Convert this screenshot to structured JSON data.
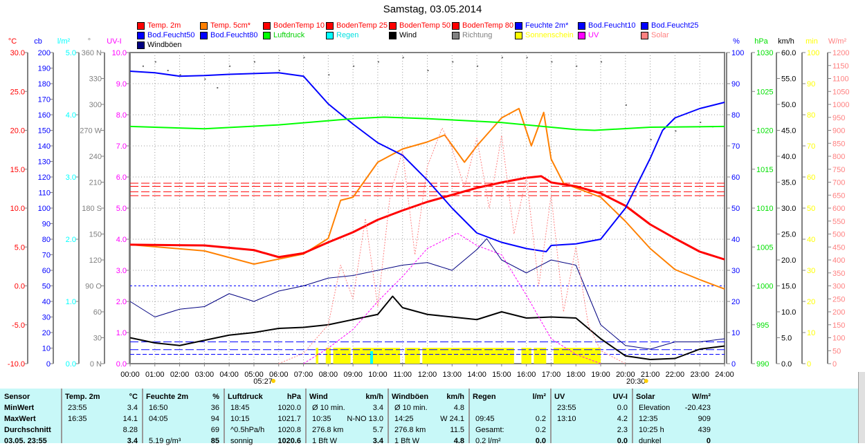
{
  "title": "Samstag, 03.05.2014",
  "legend": [
    {
      "label": "Temp. 2m",
      "color": "#ff0000",
      "text": "#ff0000"
    },
    {
      "label": "Temp. 5cm*",
      "color": "#ff8000",
      "text": "#ff0000"
    },
    {
      "label": "BodenTemp 10",
      "color": "#ff0000",
      "text": "#ff0000"
    },
    {
      "label": "BodenTemp 25",
      "color": "#ff0000",
      "text": "#ff0000"
    },
    {
      "label": "BodenTemp 50",
      "color": "#ff0000",
      "text": "#ff0000"
    },
    {
      "label": "BodenTemp 80",
      "color": "#ff0000",
      "text": "#ff0000"
    },
    {
      "label": "Feuchte 2m*",
      "color": "#0000ff",
      "text": "#0000ff"
    },
    {
      "label": "Bod.Feucht10",
      "color": "#0000ff",
      "text": "#0000ff"
    },
    {
      "label": "Bod.Feucht25",
      "color": "#0000ff",
      "text": "#0000ff"
    },
    {
      "label": "Bod.Feucht50",
      "color": "#0000ff",
      "text": "#0000ff"
    },
    {
      "label": "Bod.Feucht80",
      "color": "#0000ff",
      "text": "#0000ff"
    },
    {
      "label": "Luftdruck",
      "color": "#00ff00",
      "text": "#00d000"
    },
    {
      "label": "Regen",
      "color": "#00ffff",
      "text": "#00e0e0"
    },
    {
      "label": "Wind",
      "color": "#000000",
      "text": "#000000"
    },
    {
      "label": "Richtung",
      "color": "#808080",
      "text": "#808080"
    },
    {
      "label": "Sonnenschein",
      "color": "#ffff00",
      "text": "#ffff00"
    },
    {
      "label": "UV",
      "color": "#ff00ff",
      "text": "#ff00ff"
    },
    {
      "label": "Solar",
      "color": "#ff8080",
      "text": "#ff8080"
    },
    {
      "label": "Windböen",
      "color": "#000080",
      "text": "#000000"
    }
  ],
  "chart_data": {
    "type": "line",
    "title": "Samstag, 03.05.2014",
    "x_ticks": [
      "00:00",
      "01:00",
      "02:00",
      "03:00",
      "04:00",
      "05:00",
      "06:00",
      "07:00",
      "08:00",
      "09:00",
      "10:00",
      "11:00",
      "12:00",
      "13:00",
      "14:00",
      "15:00",
      "16:00",
      "17:00",
      "18:00",
      "19:00",
      "20:00",
      "21:00",
      "22:00",
      "23:00",
      "24:00"
    ],
    "sunrise": "05:27",
    "sunset": "20:30",
    "axes_left": [
      {
        "unit": "°C",
        "color": "#ff0000",
        "min": -10,
        "max": 30,
        "step": 5,
        "dec": 1
      },
      {
        "unit": "cb",
        "color": "#0000ff",
        "min": 0,
        "max": 200,
        "step": 10,
        "dec": 0
      },
      {
        "unit": "l/m²",
        "color": "#00ffff",
        "min": 0,
        "max": 5,
        "step": 1,
        "dec": 1
      },
      {
        "unit": "°",
        "color": "#808080",
        "min": 0,
        "max": 360,
        "step": 30,
        "dec": 0,
        "names": {
          "0": "0 N",
          "90": "90 O",
          "180": "180 S",
          "270": "270 W",
          "360": "360 N"
        }
      },
      {
        "unit": "UV-I",
        "color": "#ff00ff",
        "min": 0,
        "max": 10,
        "step": 1,
        "dec": 1
      }
    ],
    "axes_right": [
      {
        "unit": "%",
        "color": "#0000ff",
        "min": 0,
        "max": 100,
        "step": 10,
        "dec": 0
      },
      {
        "unit": "hPa",
        "color": "#00e000",
        "min": 990,
        "max": 1030,
        "step": 5,
        "dec": 0
      },
      {
        "unit": "km/h",
        "color": "#000000",
        "min": 0,
        "max": 60,
        "step": 5,
        "dec": 1
      },
      {
        "unit": "min",
        "color": "#ffff00",
        "min": 0,
        "max": 100,
        "step": 10,
        "dec": 0
      },
      {
        "unit": "W/m²",
        "color": "#ff8080",
        "min": 0,
        "max": 1200,
        "step": 50,
        "dec": 0
      }
    ],
    "series": [
      {
        "name": "Temp. 5cm*",
        "axis": "°C",
        "color": "#ff8000",
        "width": 2,
        "x": [
          0,
          3,
          5,
          7,
          8,
          8.5,
          9,
          10,
          11,
          12,
          12.7,
          13.5,
          14,
          15,
          15.7,
          16.2,
          16.7,
          17,
          17.5,
          18,
          19,
          20,
          21,
          22,
          23,
          24
        ],
        "y": [
          5.3,
          4.5,
          2.8,
          4.1,
          6.1,
          11,
          11.4,
          15.9,
          17.6,
          18.5,
          19.4,
          15.9,
          18,
          21.6,
          22.8,
          18,
          22.3,
          16.3,
          13.2,
          12.6,
          11.4,
          8.3,
          4.8,
          2.1,
          0.8,
          -0.4
        ]
      },
      {
        "name": "Temp. 2m",
        "axis": "°C",
        "color": "#ff0000",
        "width": 3,
        "x": [
          0,
          3,
          5,
          6,
          7,
          8,
          9,
          10,
          11,
          12,
          13,
          14,
          15,
          16,
          16.6,
          17,
          18,
          19,
          20,
          21,
          22,
          23,
          24
        ],
        "y": [
          5.3,
          5.2,
          4.6,
          3.7,
          4.2,
          5.6,
          6.9,
          8.5,
          9.7,
          10.8,
          11.7,
          12.6,
          13.3,
          13.9,
          14.1,
          13.3,
          12.8,
          11.9,
          10.3,
          7.9,
          6.1,
          4.4,
          3.4
        ]
      },
      {
        "name": "Feuchte 2m*",
        "axis": "%",
        "color": "#0000ff",
        "width": 2,
        "x": [
          0,
          1,
          2,
          3,
          4,
          6,
          7,
          8,
          9,
          10,
          11,
          12,
          13,
          14,
          15,
          16,
          16.8,
          17,
          18,
          19,
          20,
          21,
          21.5,
          22,
          23,
          24
        ],
        "y": [
          94,
          93.5,
          92.4,
          92.6,
          93,
          93.5,
          92.4,
          83.5,
          77,
          71,
          67,
          59,
          50,
          42,
          39,
          37,
          36,
          38,
          38.5,
          40,
          50,
          66,
          75,
          79,
          82,
          84
        ]
      },
      {
        "name": "Luftdruck",
        "axis": "hPa",
        "color": "#00ff00",
        "width": 2,
        "x": [
          0,
          3,
          6,
          9,
          10.25,
          12,
          15,
          18,
          18.75,
          21,
          24
        ],
        "y": [
          1020.5,
          1020.2,
          1020.7,
          1021.5,
          1021.7,
          1021.5,
          1021.0,
          1020.1,
          1020.0,
          1020.4,
          1020.5
        ]
      },
      {
        "name": "Windböen",
        "axis": "km/h",
        "color": "#000080",
        "width": 1,
        "x": [
          0,
          1,
          2,
          3,
          4,
          5,
          6,
          7,
          8,
          9,
          10,
          11,
          12,
          13,
          14,
          14.4,
          15,
          16,
          17,
          18,
          19,
          20,
          21,
          22,
          23,
          24
        ],
        "y": [
          12,
          9,
          10.5,
          11,
          13.5,
          12,
          14,
          15,
          16.5,
          17,
          18,
          19,
          19.5,
          18,
          22,
          24.1,
          20,
          17.5,
          20,
          19,
          7.5,
          3.5,
          2.8,
          4.2,
          4.2,
          4.8
        ]
      },
      {
        "name": "Wind",
        "axis": "km/h",
        "color": "#000000",
        "width": 2,
        "x": [
          0,
          1,
          2,
          3,
          4,
          5,
          6,
          7,
          8,
          9,
          10,
          10.6,
          11,
          12,
          13,
          14,
          15,
          16,
          17,
          18,
          19,
          20,
          21,
          22,
          23,
          24
        ],
        "y": [
          5,
          4,
          3.5,
          4.5,
          5.5,
          6,
          6.8,
          7,
          7.5,
          8.5,
          9.5,
          13,
          10.8,
          9.5,
          9,
          8.5,
          10,
          8.8,
          9,
          8.8,
          4.8,
          1.5,
          0.8,
          1.0,
          2.8,
          3.4
        ]
      },
      {
        "name": "UV",
        "axis": "UV-I",
        "color": "#ff00ff",
        "width": 1,
        "dash": "3,2",
        "x": [
          7,
          8,
          9,
          10,
          11,
          12,
          13,
          13.2,
          14,
          15,
          16,
          17,
          18,
          19
        ],
        "y": [
          0,
          0.5,
          1.1,
          2.0,
          2.8,
          3.7,
          4.1,
          4.2,
          3.8,
          3.5,
          2.2,
          0.8,
          0.3,
          0
        ]
      },
      {
        "name": "Solar",
        "axis": "W/m²",
        "color": "#ff8080",
        "width": 1,
        "dash": "2,2",
        "x": [
          6,
          7,
          8,
          8.5,
          9,
          9.5,
          10,
          10.5,
          11,
          11.5,
          12,
          12.6,
          13,
          13.5,
          14,
          14.5,
          15,
          15.5,
          16,
          16.5,
          17,
          17.5,
          18,
          18.5,
          19,
          20
        ],
        "y": [
          0,
          40,
          150,
          380,
          250,
          560,
          220,
          650,
          820,
          420,
          760,
          909,
          830,
          680,
          870,
          600,
          880,
          500,
          720,
          300,
          650,
          200,
          450,
          150,
          50,
          0
        ]
      }
    ],
    "constant_lines": [
      {
        "name": "BodenTemp 10",
        "axis": "°C",
        "color": "#ff0000",
        "value": 13.2,
        "dash": "12,4"
      },
      {
        "name": "BodenTemp 25",
        "axis": "°C",
        "color": "#ff0000",
        "value": 12.8,
        "dash": "12,4"
      },
      {
        "name": "BodenTemp 50",
        "axis": "°C",
        "color": "#ff0000",
        "value": 12.1,
        "dash": "12,4"
      },
      {
        "name": "BodenTemp 80",
        "axis": "°C",
        "color": "#ff0000",
        "value": 11.6,
        "dash": "12,4"
      },
      {
        "name": "Bod.Feucht10",
        "axis": "%",
        "color": "#0000ff",
        "value": 25,
        "dash": "3,3"
      },
      {
        "name": "Bod.Feucht25",
        "axis": "%",
        "color": "#0000ff",
        "value": 7,
        "dash": "12,4"
      },
      {
        "name": "Bod.Feucht50",
        "axis": "%",
        "color": "#0000ff",
        "value": 4.5,
        "dash": "12,4"
      },
      {
        "name": "Bod.Feucht80",
        "axis": "%",
        "color": "#0000ff",
        "value": 3,
        "dash": "6,3"
      }
    ],
    "sunshine_intervals": [
      [
        7.5,
        7.6
      ],
      [
        7.9,
        8.1
      ],
      [
        8.2,
        8.9
      ],
      [
        9.0,
        10.9
      ],
      [
        11.1,
        11.7
      ],
      [
        11.8,
        15.5
      ],
      [
        15.8,
        16.2
      ],
      [
        16.3,
        16.8
      ],
      [
        17.1,
        19.0
      ]
    ],
    "rain": {
      "time": 9.75,
      "value": 0.2
    },
    "direction": {
      "x": [
        0.5,
        1,
        1.5,
        2,
        3,
        3.5,
        4,
        5,
        6,
        7,
        8,
        9,
        10,
        11,
        12,
        13,
        14,
        15,
        16,
        17,
        18,
        19,
        20,
        21,
        22,
        23,
        23.5
      ],
      "y": [
        345,
        350,
        340,
        335,
        330,
        320,
        345,
        350,
        340,
        355,
        335,
        345,
        350,
        355,
        340,
        350,
        345,
        355,
        355,
        350,
        345,
        350,
        300,
        260,
        270,
        280,
        275
      ]
    }
  },
  "table": {
    "groups": [
      {
        "header": [
          "Sensor",
          ""
        ],
        "rows": [
          [
            "MinWert",
            ""
          ],
          [
            "MaxWert",
            ""
          ],
          [
            "Durchschnitt",
            ""
          ],
          [
            "03.05. 23:55",
            ""
          ]
        ],
        "labels_bold": true
      },
      {
        "header": [
          "Temp. 2m",
          "°C"
        ],
        "rows": [
          [
            "23:55",
            "3.4"
          ],
          [
            "16:35",
            "14.1"
          ],
          [
            "",
            "8.28"
          ],
          [
            "",
            "3.4"
          ]
        ]
      },
      {
        "header": [
          "Feuchte 2m",
          "%"
        ],
        "rows": [
          [
            "16:50",
            "36"
          ],
          [
            "04:05",
            "94"
          ],
          [
            "",
            "69"
          ],
          [
            "5.19 g/m³",
            "85"
          ]
        ]
      },
      {
        "header": [
          "Luftdruck",
          "hPa"
        ],
        "rows": [
          [
            "18:45",
            "1020.0"
          ],
          [
            "10:15",
            "1021.7"
          ],
          [
            "^0.5hPa/h",
            "1020.8"
          ],
          [
            "sonnig",
            "1020.6"
          ]
        ]
      },
      {
        "header": [
          "Wind",
          "km/h"
        ],
        "rows": [
          [
            "Ø 10 min.",
            "3.4"
          ],
          [
            "10:35",
            "N-NO 13.0"
          ],
          [
            "276.8 km",
            "5.7"
          ],
          [
            "1 Bft W",
            "3.4"
          ]
        ]
      },
      {
        "header": [
          "Windböen",
          "km/h"
        ],
        "rows": [
          [
            "Ø 10 min.",
            "4.8"
          ],
          [
            "14:25",
            "W 24.1"
          ],
          [
            "276.8 km",
            "11.5"
          ],
          [
            "1 Bft W",
            "4.8"
          ]
        ]
      },
      {
        "header": [
          "Regen",
          "l/m²"
        ],
        "rows": [
          [
            "",
            ""
          ],
          [
            "09:45",
            "0.2"
          ],
          [
            "Gesamt:",
            "0.2"
          ],
          [
            "0.2 l/m²",
            "0.0"
          ]
        ]
      },
      {
        "header": [
          "UV",
          "UV-I"
        ],
        "rows": [
          [
            "23:55",
            "0.0"
          ],
          [
            "13:10",
            "4.2"
          ],
          [
            "",
            "2.3"
          ],
          [
            "",
            "0.0"
          ]
        ]
      },
      {
        "header": [
          "Solar",
          "W/m²"
        ],
        "rows": [
          [
            "Elevation",
            "-20.423"
          ],
          [
            "12:35",
            "909"
          ],
          [
            "10:25 h",
            "439"
          ],
          [
            "dunkel",
            "0"
          ]
        ]
      }
    ]
  }
}
